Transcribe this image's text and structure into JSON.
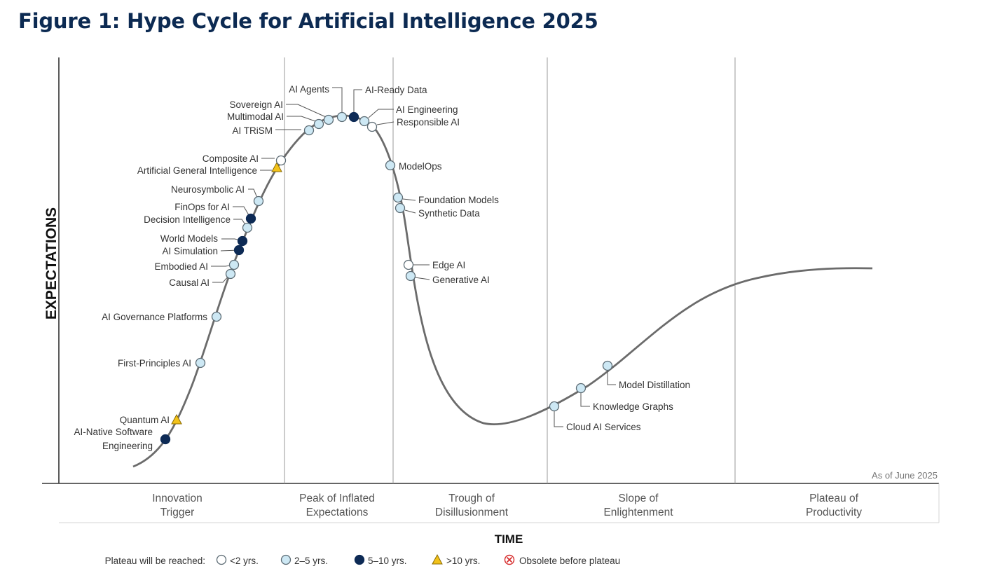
{
  "page": {
    "title": "Figure 1: Hype Cycle for Artificial Intelligence 2025"
  },
  "chart_data": {
    "type": "line",
    "title": "Figure 1: Hype Cycle for Artificial Intelligence 2025",
    "xlabel": "TIME",
    "ylabel": "EXPECTATIONS",
    "as_of": "As of June 2025",
    "phases": [
      {
        "key": "innovation",
        "lines": [
          "Innovation",
          "Trigger"
        ]
      },
      {
        "key": "peak",
        "lines": [
          "Peak of Inflated",
          "Expectations"
        ]
      },
      {
        "key": "trough",
        "lines": [
          "Trough of",
          "Disillusionment"
        ]
      },
      {
        "key": "slope",
        "lines": [
          "Slope of",
          "Enlightenment"
        ]
      },
      {
        "key": "plateau",
        "lines": [
          "Plateau of",
          "Productivity"
        ]
      }
    ],
    "legend": {
      "prefix": "Plateau will be reached:",
      "items": [
        {
          "key": "lt2",
          "label": "<2 yrs."
        },
        {
          "key": "2to5",
          "label": "2–5 yrs."
        },
        {
          "key": "5to10",
          "label": "5–10 yrs."
        },
        {
          "key": "gt10",
          "label": ">10 yrs."
        },
        {
          "key": "obsolete",
          "label": "Obsolete before plateau"
        }
      ]
    },
    "colors": {
      "lt2": "#ffffff",
      "2to5": "#cde8f4",
      "5to10": "#0d2a55",
      "gt10": "#f2c21a",
      "obsolete": "#d62b2b",
      "curve": "#6b6b6b",
      "title": "#0c2a52"
    },
    "technologies": [
      {
        "name": "AI-Native Software Engineering",
        "lines": [
          "AI-Native Software",
          "Engineering"
        ],
        "category": "5to10"
      },
      {
        "name": "Quantum AI",
        "category": "gt10"
      },
      {
        "name": "First-Principles AI",
        "category": "2to5"
      },
      {
        "name": "AI Governance Platforms",
        "category": "2to5"
      },
      {
        "name": "Causal AI",
        "category": "2to5"
      },
      {
        "name": "Embodied AI",
        "category": "2to5"
      },
      {
        "name": "AI Simulation",
        "category": "5to10"
      },
      {
        "name": "World Models",
        "category": "5to10"
      },
      {
        "name": "Decision Intelligence",
        "category": "2to5"
      },
      {
        "name": "FinOps for AI",
        "category": "5to10"
      },
      {
        "name": "Neurosymbolic AI",
        "category": "2to5"
      },
      {
        "name": "Artificial General Intelligence",
        "category": "gt10"
      },
      {
        "name": "Composite AI",
        "category": "lt2"
      },
      {
        "name": "AI TRiSM",
        "category": "2to5"
      },
      {
        "name": "Multimodal AI",
        "category": "2to5"
      },
      {
        "name": "Sovereign AI",
        "category": "2to5"
      },
      {
        "name": "AI Agents",
        "category": "2to5"
      },
      {
        "name": "AI-Ready Data",
        "category": "5to10"
      },
      {
        "name": "AI Engineering",
        "category": "2to5"
      },
      {
        "name": "Responsible AI",
        "category": "lt2"
      },
      {
        "name": "ModelOps",
        "category": "2to5"
      },
      {
        "name": "Foundation Models",
        "category": "2to5"
      },
      {
        "name": "Synthetic Data",
        "category": "2to5"
      },
      {
        "name": "Edge AI",
        "category": "lt2"
      },
      {
        "name": "Generative AI",
        "category": "2to5"
      },
      {
        "name": "Cloud AI Services",
        "category": "2to5"
      },
      {
        "name": "Knowledge Graphs",
        "category": "2to5"
      },
      {
        "name": "Model Distillation",
        "category": "2to5"
      }
    ]
  }
}
